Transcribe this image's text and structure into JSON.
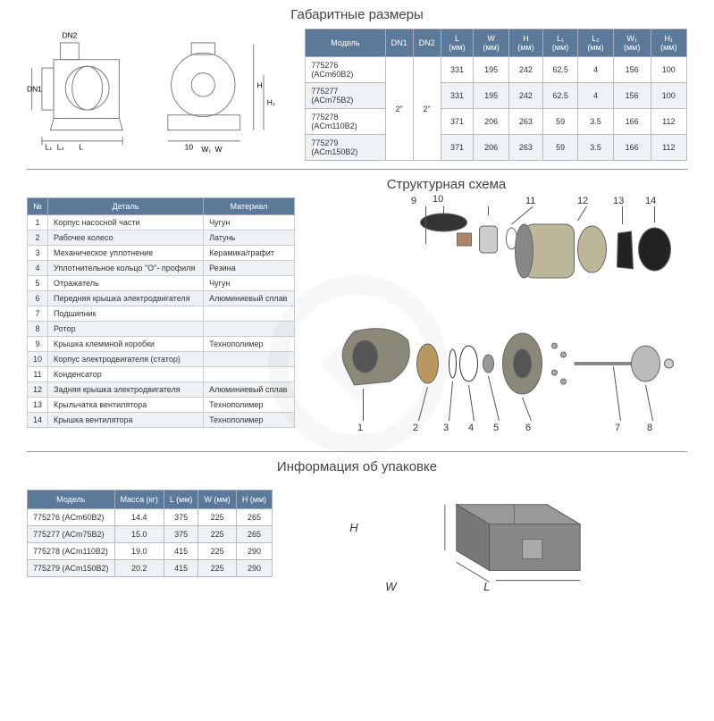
{
  "colors": {
    "header_bg": "#5b7a9a",
    "header_text": "#ffffff",
    "row_alt": "#eef2f5",
    "border": "#bbbbbb",
    "title": "#444444",
    "drawing_line": "#888888"
  },
  "section1": {
    "title": "Габаритные размеры",
    "drawing_labels": {
      "dn1": "DN1",
      "dn2": "DN2",
      "L": "L",
      "L1": "L₁",
      "L2": "L₂",
      "W": "W",
      "W1": "W₁",
      "H": "H",
      "H1": "H₁",
      "ten": "10"
    },
    "table": {
      "headers": [
        "Модель",
        "DN1",
        "DN2",
        "L (мм)",
        "W (мм)",
        "H (мм)",
        "L₁ (мм)",
        "L₂ (мм)",
        "W₁ (мм)",
        "H₁ (мм)"
      ],
      "dn1": "2\"",
      "dn2": "2\"",
      "rows": [
        [
          "775276 (ACm60B2)",
          "331",
          "195",
          "242",
          "62.5",
          "4",
          "156",
          "100"
        ],
        [
          "775277 (ACm75B2)",
          "331",
          "195",
          "242",
          "62.5",
          "4",
          "156",
          "100"
        ],
        [
          "775278 (ACm110B2)",
          "371",
          "206",
          "263",
          "59",
          "3.5",
          "166",
          "112"
        ],
        [
          "775279 (ACm150B2)",
          "371",
          "206",
          "263",
          "59",
          "3.5",
          "166",
          "112"
        ]
      ]
    }
  },
  "section2": {
    "title": "Структурная схема",
    "parts": {
      "headers": [
        "№",
        "Деталь",
        "Материал"
      ],
      "rows": [
        [
          "1",
          "Корпус насосной части",
          "Чугун"
        ],
        [
          "2",
          "Рабочее колесо",
          "Латунь"
        ],
        [
          "3",
          "Механическое уплотнение",
          "Керамика/графит"
        ],
        [
          "4",
          "Уплотнительное кольцо \"О\"- профиля",
          "Резина"
        ],
        [
          "5",
          "Отражатель",
          "Чугун"
        ],
        [
          "6",
          "Передняя крышка электродвигателя",
          "Алюминиевый сплав"
        ],
        [
          "7",
          "Подшипник",
          ""
        ],
        [
          "8",
          "Ротор",
          ""
        ],
        [
          "9",
          "Крышка клеммной коробки",
          "Технополимер"
        ],
        [
          "10",
          "Корпус электродвигателя (статор)",
          ""
        ],
        [
          "11",
          "Конденсатор",
          ""
        ],
        [
          "12",
          "Задняя крышка электродвигателя",
          "Алюминиевый сплав"
        ],
        [
          "13",
          "Крыльчатка вентилятора",
          "Технополимер"
        ],
        [
          "14",
          "Крышка вентилятора",
          "Технополимер"
        ]
      ]
    },
    "exploded_labels": [
      "1",
      "2",
      "3",
      "4",
      "5",
      "6",
      "7",
      "8",
      "9",
      "10",
      "11",
      "12",
      "13",
      "14"
    ]
  },
  "section3": {
    "title": "Информация об упаковке",
    "table": {
      "headers": [
        "Модель",
        "Масса (кг)",
        "L (мм)",
        "W (мм)",
        "H (мм)"
      ],
      "rows": [
        [
          "775276 (ACm60B2)",
          "14.4",
          "375",
          "225",
          "265"
        ],
        [
          "775277 (ACm75B2)",
          "15.0",
          "375",
          "225",
          "265"
        ],
        [
          "775278 (ACm110B2)",
          "19.0",
          "415",
          "225",
          "290"
        ],
        [
          "775279 (ACm150B2)",
          "20.2",
          "415",
          "225",
          "290"
        ]
      ]
    },
    "box_labels": {
      "H": "H",
      "W": "W",
      "L": "L"
    }
  }
}
